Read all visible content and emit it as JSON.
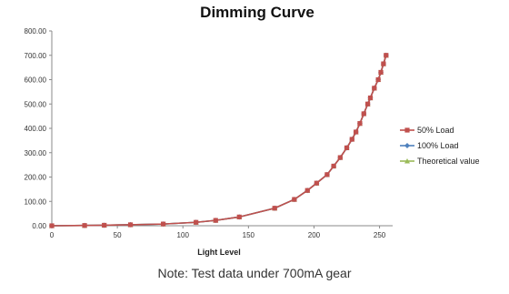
{
  "chart_data": {
    "type": "line",
    "title": "Dimming Curve",
    "xlabel": "Light Level",
    "ylabel": "",
    "xlim": [
      0,
      260
    ],
    "ylim": [
      0,
      800
    ],
    "xticks": [
      0,
      50,
      100,
      150,
      200,
      250
    ],
    "yticks": [
      0,
      100,
      200,
      300,
      400,
      500,
      600,
      700,
      800
    ],
    "ytick_labels": [
      "0.00",
      "100.00",
      "200.00",
      "300.00",
      "400.00",
      "500.00",
      "600.00",
      "700.00",
      "800.00"
    ],
    "grid": false,
    "legend_position": "right",
    "series": [
      {
        "name": "50% Load",
        "color": "#c0504d",
        "marker": "square",
        "x": [
          0,
          25,
          40,
          60,
          85,
          110,
          125,
          143,
          170,
          185,
          195,
          202,
          210,
          215,
          220,
          225,
          229,
          232,
          235,
          238,
          241,
          243,
          246,
          249,
          251,
          253,
          255
        ],
        "y": [
          0,
          1,
          2,
          4,
          7,
          14,
          22,
          36,
          72,
          108,
          145,
          175,
          210,
          245,
          280,
          320,
          355,
          385,
          420,
          460,
          500,
          525,
          565,
          600,
          630,
          665,
          700
        ]
      },
      {
        "name": "100% Load",
        "color": "#4f81bd",
        "marker": "diamond",
        "x": [
          0,
          25,
          40,
          60,
          85,
          110,
          125,
          143,
          170,
          185,
          195,
          202,
          210,
          215,
          220,
          225,
          229,
          232,
          235,
          238,
          241,
          243,
          246,
          249,
          251,
          253,
          255
        ],
        "y": [
          0,
          1,
          2,
          4,
          7,
          14,
          22,
          36,
          72,
          108,
          145,
          175,
          210,
          245,
          280,
          320,
          355,
          385,
          420,
          460,
          500,
          525,
          565,
          600,
          630,
          665,
          700
        ]
      },
      {
        "name": "Theoretical value",
        "color": "#9bbb59",
        "marker": "triangle",
        "x": [
          0,
          25,
          40,
          60,
          85,
          110,
          125,
          143,
          170,
          185,
          195,
          202,
          210,
          215,
          220,
          225,
          229,
          232,
          235,
          238,
          241,
          243,
          246,
          249,
          251,
          253,
          255
        ],
        "y": [
          0,
          1,
          2,
          4,
          7,
          14,
          22,
          36,
          72,
          108,
          145,
          175,
          210,
          245,
          280,
          320,
          355,
          385,
          420,
          460,
          500,
          525,
          565,
          600,
          630,
          665,
          700
        ]
      }
    ]
  },
  "note": "Note: Test data under 700mA gear"
}
